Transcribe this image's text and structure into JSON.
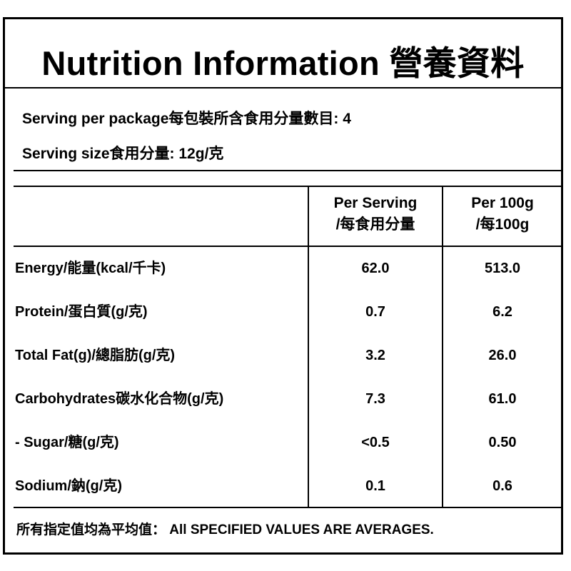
{
  "label": {
    "title": "Nutrition Information 營養資料",
    "serving_per_package": "Serving per package每包裝所含食用分量數目: 4",
    "serving_size": "Serving size食用分量: 12g/克"
  },
  "table": {
    "columns": [
      {
        "line1": "Per Serving",
        "line2": "/每食用分量"
      },
      {
        "line1": "Per 100g",
        "line2": "/每100g"
      }
    ],
    "rows": [
      {
        "name": "Energy/能量(kcal/千卡)",
        "per_serving": "62.0",
        "per_100g": "513.0"
      },
      {
        "name": "Protein/蛋白質(g/克)",
        "per_serving": "0.7",
        "per_100g": "6.2"
      },
      {
        "name": "Total Fat(g)/總脂肪(g/克)",
        "per_serving": "3.2",
        "per_100g": "26.0"
      },
      {
        "name": "Carbohydrates碳水化合物(g/克)",
        "per_serving": "7.3",
        "per_100g": "61.0"
      },
      {
        "name": "- Sugar/糖(g/克)",
        "per_serving": "<0.5",
        "per_100g": "0.50"
      },
      {
        "name": "Sodium/鈉(g/克)",
        "per_serving": "0.1",
        "per_100g": "0.6"
      }
    ]
  },
  "footer": "所有指定值均為平均值： All SPECIFIED VALUES ARE AVERAGES."
}
